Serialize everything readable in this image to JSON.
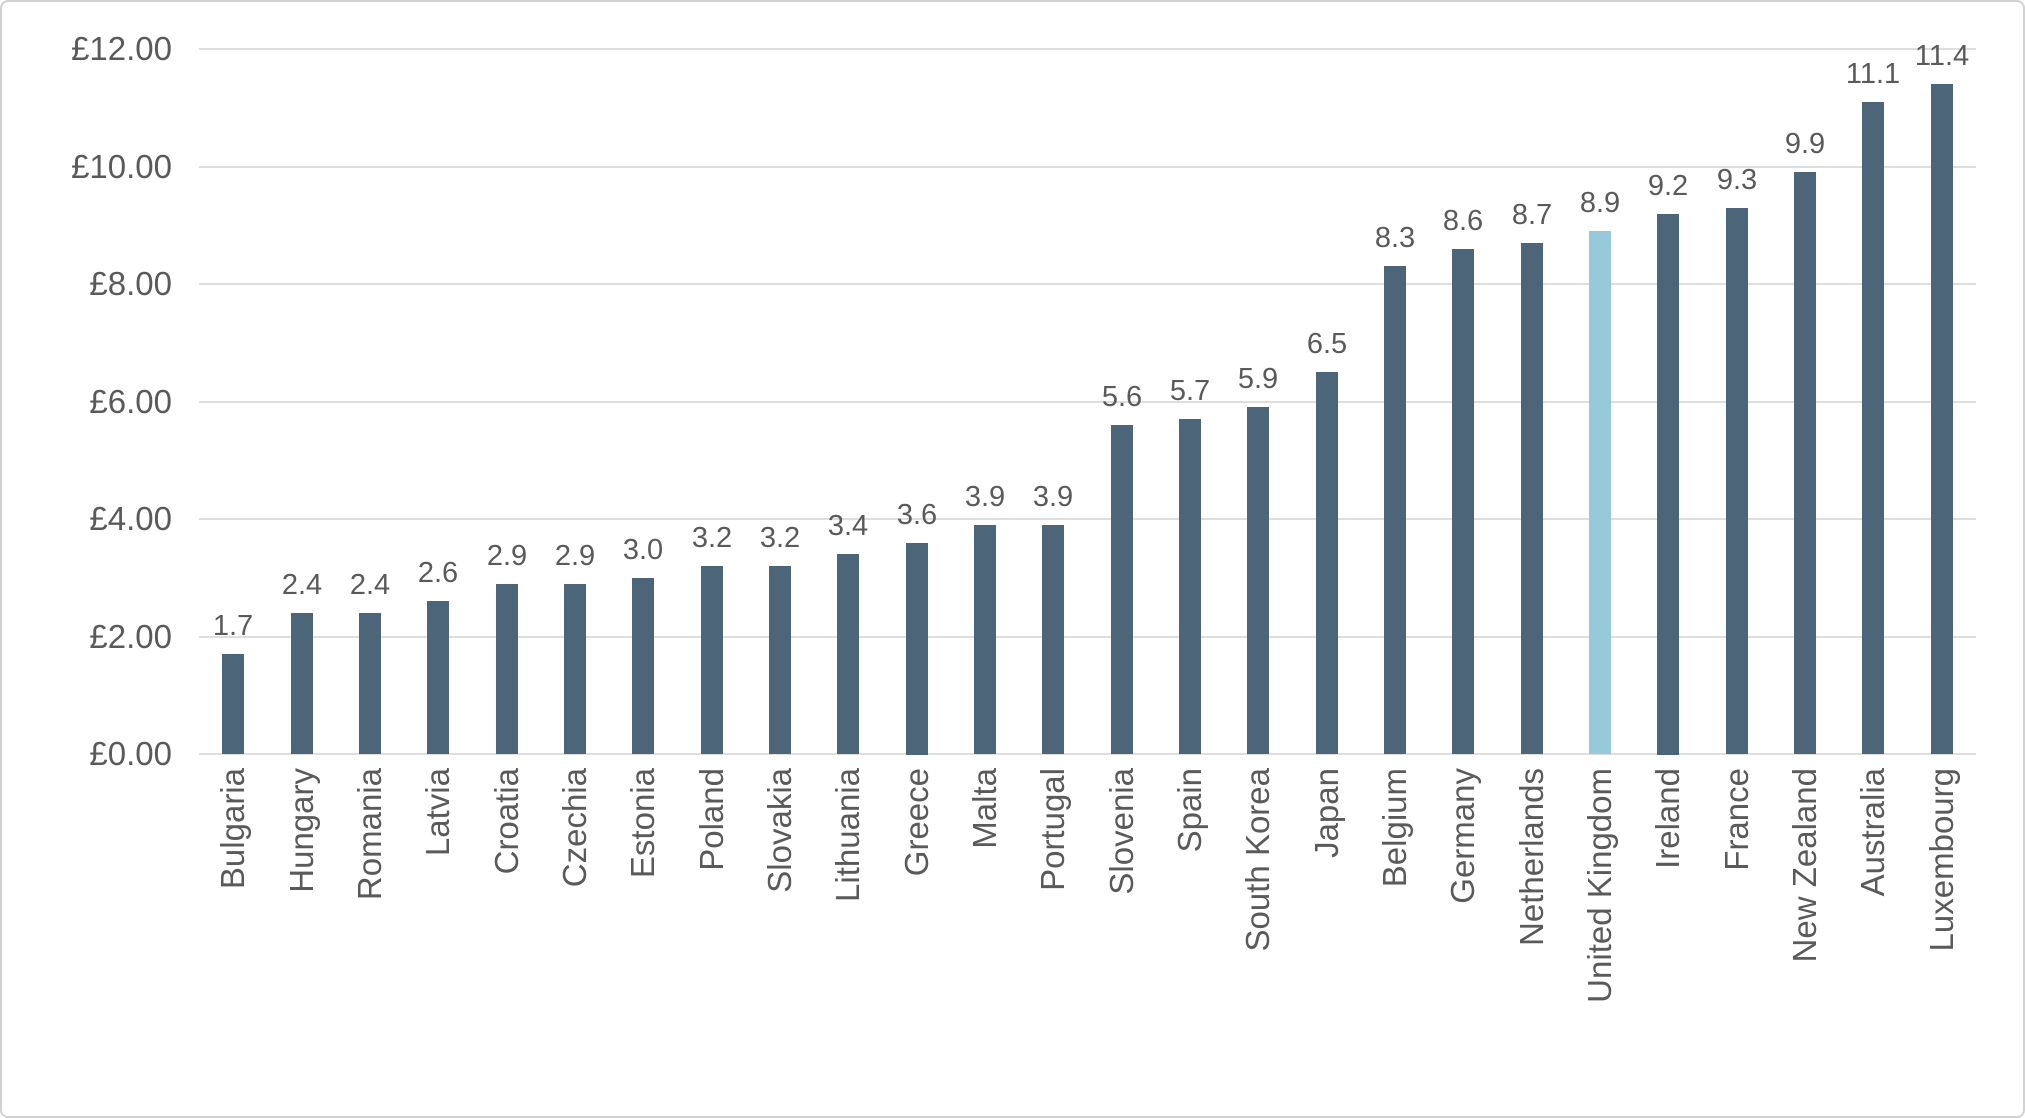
{
  "chart_data": {
    "type": "bar",
    "categories": [
      "Bulgaria",
      "Hungary",
      "Romania",
      "Latvia",
      "Croatia",
      "Czechia",
      "Estonia",
      "Poland",
      "Slovakia",
      "Lithuania",
      "Greece",
      "Malta",
      "Portugal",
      "Slovenia",
      "Spain",
      "South Korea",
      "Japan",
      "Belgium",
      "Germany",
      "Netherlands",
      "United Kingdom",
      "Ireland",
      "France",
      "New Zealand",
      "Australia",
      "Luxembourg"
    ],
    "values": [
      1.7,
      2.4,
      2.4,
      2.6,
      2.9,
      2.9,
      3.0,
      3.2,
      3.2,
      3.4,
      3.6,
      3.9,
      3.9,
      5.6,
      5.7,
      5.9,
      6.5,
      8.3,
      8.6,
      8.7,
      8.9,
      9.2,
      9.3,
      9.9,
      11.1,
      11.4
    ],
    "data_labels": [
      "1.7",
      "2.4",
      "2.4",
      "2.6",
      "2.9",
      "2.9",
      "3.0",
      "3.2",
      "3.2",
      "3.4",
      "3.6",
      "3.9",
      "3.9",
      "5.6",
      "5.7",
      "5.9",
      "6.5",
      "8.3",
      "8.6",
      "8.7",
      "8.9",
      "9.2",
      "9.3",
      "9.9",
      "11.1",
      "11.4"
    ],
    "y_ticks": [
      "£12.00",
      "£10.00",
      "£8.00",
      "£6.00",
      "£4.00",
      "£2.00",
      "£0.00"
    ],
    "ylim": [
      0,
      12
    ],
    "y_step": 2,
    "currency_prefix": "£",
    "grid": true,
    "legend": "none",
    "xlabel": "",
    "ylabel": "",
    "highlight_category": "United Kingdom",
    "colors": {
      "bar": "#4c6579",
      "highlight_bar": "#96cadb",
      "gridline": "#dedede",
      "text": "#5a5a5a",
      "border": "#d2d2d2"
    }
  }
}
